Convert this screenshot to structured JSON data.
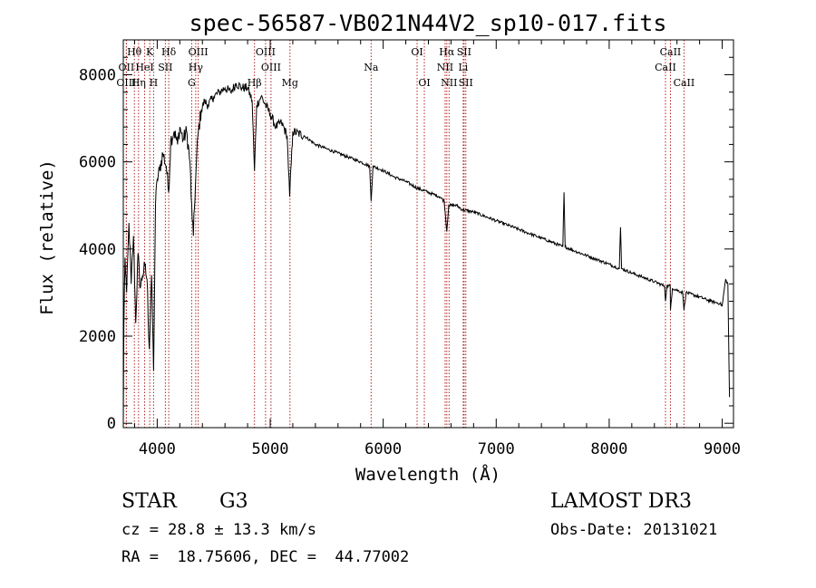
{
  "chart_data": {
    "type": "line",
    "title": "spec-56587-VB021N44V2_sp10-017.fits",
    "xlabel": "Wavelength (Å)",
    "ylabel": "Flux (relative)",
    "xlim": [
      3700,
      9100
    ],
    "ylim": [
      -100,
      8800
    ],
    "x_ticks": [
      4000,
      5000,
      6000,
      7000,
      8000,
      9000
    ],
    "y_ticks": [
      0,
      2000,
      4000,
      6000,
      8000
    ],
    "grid": false,
    "spectrum_knots": [
      [
        3700,
        0
      ],
      [
        3705,
        2200
      ],
      [
        3715,
        3800
      ],
      [
        3730,
        3000
      ],
      [
        3750,
        4600
      ],
      [
        3770,
        3200
      ],
      [
        3790,
        4300
      ],
      [
        3810,
        2300
      ],
      [
        3830,
        3900
      ],
      [
        3850,
        3100
      ],
      [
        3870,
        3400
      ],
      [
        3890,
        3600
      ],
      [
        3910,
        3300
      ],
      [
        3930,
        1700
      ],
      [
        3950,
        3400
      ],
      [
        3968,
        1200
      ],
      [
        3985,
        5000
      ],
      [
        4000,
        5600
      ],
      [
        4020,
        5800
      ],
      [
        4050,
        6200
      ],
      [
        4080,
        5900
      ],
      [
        4101,
        5300
      ],
      [
        4120,
        6500
      ],
      [
        4150,
        6700
      ],
      [
        4180,
        6400
      ],
      [
        4200,
        6800
      ],
      [
        4230,
        6500
      ],
      [
        4260,
        6700
      ],
      [
        4290,
        6000
      ],
      [
        4300,
        5200
      ],
      [
        4320,
        4300
      ],
      [
        4340,
        5600
      ],
      [
        4360,
        6600
      ],
      [
        4390,
        7200
      ],
      [
        4420,
        7400
      ],
      [
        4450,
        7300
      ],
      [
        4500,
        7500
      ],
      [
        4550,
        7600
      ],
      [
        4600,
        7700
      ],
      [
        4650,
        7600
      ],
      [
        4700,
        7800
      ],
      [
        4750,
        7700
      ],
      [
        4800,
        7700
      ],
      [
        4840,
        7400
      ],
      [
        4861,
        5800
      ],
      [
        4880,
        7300
      ],
      [
        4920,
        7500
      ],
      [
        4960,
        7300
      ],
      [
        5000,
        7100
      ],
      [
        5050,
        6800
      ],
      [
        5100,
        6900
      ],
      [
        5150,
        6600
      ],
      [
        5172,
        5200
      ],
      [
        5200,
        6700
      ],
      [
        5300,
        6600
      ],
      [
        5400,
        6400
      ],
      [
        5500,
        6300
      ],
      [
        5600,
        6200
      ],
      [
        5700,
        6100
      ],
      [
        5800,
        6000
      ],
      [
        5880,
        5900
      ],
      [
        5893,
        5100
      ],
      [
        5910,
        5900
      ],
      [
        6000,
        5800
      ],
      [
        6100,
        5650
      ],
      [
        6200,
        5550
      ],
      [
        6300,
        5400
      ],
      [
        6400,
        5300
      ],
      [
        6500,
        5200
      ],
      [
        6540,
        5100
      ],
      [
        6563,
        4400
      ],
      [
        6580,
        5000
      ],
      [
        6650,
        5000
      ],
      [
        6700,
        4900
      ],
      [
        6800,
        4850
      ],
      [
        6900,
        4750
      ],
      [
        7000,
        4650
      ],
      [
        7100,
        4550
      ],
      [
        7200,
        4450
      ],
      [
        7300,
        4350
      ],
      [
        7400,
        4250
      ],
      [
        7500,
        4150
      ],
      [
        7590,
        4050
      ],
      [
        7600,
        5300
      ],
      [
        7610,
        4050
      ],
      [
        7700,
        3950
      ],
      [
        7800,
        3850
      ],
      [
        7900,
        3750
      ],
      [
        8000,
        3650
      ],
      [
        8090,
        3550
      ],
      [
        8100,
        4500
      ],
      [
        8110,
        3550
      ],
      [
        8200,
        3450
      ],
      [
        8300,
        3350
      ],
      [
        8400,
        3250
      ],
      [
        8490,
        3150
      ],
      [
        8498,
        2800
      ],
      [
        8510,
        3150
      ],
      [
        8540,
        3150
      ],
      [
        8542,
        2600
      ],
      [
        8560,
        3100
      ],
      [
        8650,
        3000
      ],
      [
        8662,
        2600
      ],
      [
        8680,
        3000
      ],
      [
        8800,
        2900
      ],
      [
        8900,
        2800
      ],
      [
        8980,
        2750
      ],
      [
        9000,
        2700
      ],
      [
        9030,
        3300
      ],
      [
        9050,
        3200
      ],
      [
        9060,
        1400
      ],
      [
        9065,
        600
      ]
    ],
    "lines": [
      {
        "label": "Hθ",
        "wl": 3798,
        "row": 0
      },
      {
        "label": "OII",
        "wl": 3727,
        "row": 1
      },
      {
        "label": "OIII",
        "wl": 3727,
        "row": 2
      },
      {
        "label": "K",
        "wl": 3934,
        "row": 0
      },
      {
        "label": "Hη",
        "wl": 3835,
        "row": 2
      },
      {
        "label": "HeI",
        "wl": 3889,
        "row": 1
      },
      {
        "label": "SII",
        "wl": 4072,
        "row": 1
      },
      {
        "label": "H",
        "wl": 3968,
        "row": 2
      },
      {
        "label": "Hδ",
        "wl": 4102,
        "row": 0
      },
      {
        "label": "OIII",
        "wl": 4363,
        "row": 0
      },
      {
        "label": "Hγ",
        "wl": 4341,
        "row": 1
      },
      {
        "label": "G",
        "wl": 4305,
        "row": 2
      },
      {
        "label": "Hβ",
        "wl": 4861,
        "row": 2
      },
      {
        "label": "OIII",
        "wl": 4959,
        "row": 0
      },
      {
        "label": "OIII",
        "wl": 5007,
        "row": 1
      },
      {
        "label": "Mg",
        "wl": 5175,
        "row": 2
      },
      {
        "label": "Na",
        "wl": 5893,
        "row": 1
      },
      {
        "label": "OI",
        "wl": 6300,
        "row": 0
      },
      {
        "label": "OI",
        "wl": 6364,
        "row": 2
      },
      {
        "label": "Hα",
        "wl": 6563,
        "row": 0
      },
      {
        "label": "NII",
        "wl": 6548,
        "row": 1
      },
      {
        "label": "NII",
        "wl": 6583,
        "row": 2
      },
      {
        "label": "SII",
        "wl": 6716,
        "row": 0
      },
      {
        "label": "Li",
        "wl": 6708,
        "row": 1
      },
      {
        "label": "SII",
        "wl": 6731,
        "row": 2
      },
      {
        "label": "CaII",
        "wl": 8542,
        "row": 0
      },
      {
        "label": "CaII",
        "wl": 8498,
        "row": 1
      },
      {
        "label": "CaII",
        "wl": 8662,
        "row": 2
      }
    ]
  },
  "info": {
    "object_class": "STAR",
    "subclass": "G3",
    "redshift": "cz = 28.8 ± 13.3 km/s",
    "coords": "RA =  18.75606, DEC =  44.77002",
    "survey": "LAMOST DR3",
    "obs_date": "Obs-Date: 20131021"
  }
}
